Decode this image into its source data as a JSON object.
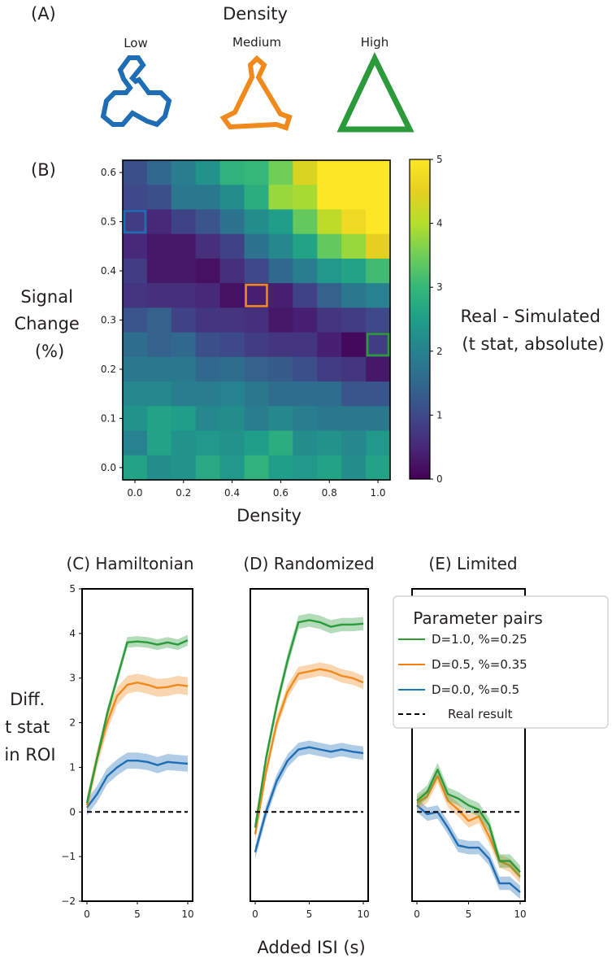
{
  "colors": {
    "blue": "#1f6eb5",
    "orange": "#f08a1c",
    "green": "#2b9a3a",
    "legend_blue": "#1f77b4",
    "legend_orange": "#ff7f0e",
    "legend_green": "#2ca02c"
  },
  "panel_a": {
    "label": "(A)",
    "title": "Density",
    "shapes": [
      {
        "label": "Low",
        "color": "#1f6eb5"
      },
      {
        "label": "Medium",
        "color": "#f08a1c"
      },
      {
        "label": "High",
        "color": "#2b9a3a"
      }
    ]
  },
  "panel_b": {
    "label": "(B)",
    "ylabel_lines": [
      "Signal",
      "Change",
      "(%)"
    ],
    "colorbar_label_lines": [
      "Real - Simulated",
      "(t stat, absolute)"
    ]
  },
  "panels_cde": {
    "titles": [
      "(C) Hamiltonian",
      "(D) Randomized",
      "(E) Limited"
    ],
    "ylabel_lines": [
      "Diff.",
      "t stat",
      "in ROI"
    ],
    "xlabel": "Added ISI (s)"
  },
  "legend": {
    "title": "Parameter pairs",
    "entries": [
      "D=1.0, %=0.25",
      "D=0.5, %=0.35",
      "D=0.0, %=0.5",
      "Real result"
    ]
  },
  "chart_data": [
    {
      "type": "heatmap",
      "title": "",
      "xlabel": "Density",
      "ylabel": "Signal Change (%)",
      "x_tick_labels": [
        "0.0",
        "0.2",
        "0.4",
        "0.6",
        "0.8",
        "1.0"
      ],
      "y_tick_labels": [
        "0.0",
        "0.1",
        "0.2",
        "0.3",
        "0.4",
        "0.5",
        "0.6"
      ],
      "x_values": [
        0.0,
        0.1,
        0.2,
        0.3,
        0.4,
        0.5,
        0.6,
        0.7,
        0.8,
        0.9,
        1.0
      ],
      "y_values": [
        0.6,
        0.55,
        0.5,
        0.45,
        0.4,
        0.35,
        0.3,
        0.25,
        0.2,
        0.15,
        0.1,
        0.05,
        0.0
      ],
      "values": [
        [
          1.1,
          1.5,
          1.9,
          2.3,
          2.9,
          3.0,
          3.5,
          4.4,
          5.0,
          5.0,
          5.0
        ],
        [
          1.0,
          1.1,
          1.8,
          1.8,
          2.2,
          2.8,
          3.8,
          3.9,
          5.0,
          5.0,
          5.0
        ],
        [
          0.8,
          0.5,
          0.9,
          1.2,
          1.7,
          2.2,
          2.5,
          3.4,
          4.1,
          4.7,
          5.0
        ],
        [
          0.5,
          0.3,
          0.3,
          0.6,
          0.9,
          1.7,
          2.1,
          2.6,
          3.4,
          3.8,
          4.5
        ],
        [
          0.8,
          0.3,
          0.3,
          0.2,
          0.6,
          1.0,
          1.5,
          1.9,
          2.4,
          2.6,
          3.1
        ],
        [
          0.7,
          0.6,
          0.6,
          0.5,
          0.2,
          0.4,
          0.4,
          0.9,
          1.4,
          1.8,
          2.0
        ],
        [
          1.2,
          1.4,
          0.9,
          0.7,
          0.7,
          0.6,
          0.3,
          0.4,
          0.7,
          0.8,
          1.0
        ],
        [
          1.6,
          1.4,
          1.5,
          1.1,
          1.0,
          0.8,
          0.7,
          0.7,
          0.4,
          0.1,
          0.8
        ],
        [
          1.8,
          1.8,
          1.8,
          1.5,
          1.6,
          1.4,
          1.3,
          1.1,
          0.8,
          0.7,
          0.3
        ],
        [
          2.1,
          2.1,
          1.9,
          1.9,
          2.0,
          1.8,
          1.6,
          1.6,
          1.6,
          1.2,
          1.2
        ],
        [
          2.3,
          2.6,
          2.5,
          2.1,
          2.2,
          1.9,
          2.1,
          1.9,
          1.8,
          1.8,
          1.8
        ],
        [
          2.0,
          2.6,
          2.3,
          2.4,
          2.3,
          2.5,
          2.8,
          2.2,
          2.3,
          2.1,
          2.4
        ],
        [
          2.6,
          2.2,
          2.3,
          2.7,
          2.4,
          2.9,
          2.5,
          2.4,
          2.6,
          2.2,
          2.6
        ]
      ],
      "colorbar": {
        "label": "Real - Simulated (t stat, absolute)",
        "range": [
          0,
          5
        ],
        "ticks": [
          "0",
          "1",
          "2",
          "3",
          "4",
          "5"
        ]
      },
      "highlighted_cells": [
        {
          "density": 0.0,
          "signal": 0.5,
          "color": "#1f6eb5"
        },
        {
          "density": 0.5,
          "signal": 0.35,
          "color": "#f08a1c"
        },
        {
          "density": 1.0,
          "signal": 0.25,
          "color": "#2b9a3a"
        }
      ]
    },
    {
      "type": "line",
      "title": "(C) Hamiltonian",
      "xlabel": "Added ISI (s)",
      "ylabel": "Diff. t stat in ROI",
      "x": [
        0,
        1,
        2,
        3,
        4,
        5,
        6,
        7,
        8,
        9,
        10
      ],
      "ylim": [
        -2,
        5
      ],
      "y_ticks": [
        "-2",
        "-1",
        "0",
        "1",
        "2",
        "3",
        "4",
        "5"
      ],
      "x_ticks": [
        "0",
        "5",
        "10"
      ],
      "series": [
        {
          "name": "D=1.0, %=0.25",
          "values": [
            0.2,
            1.2,
            2.2,
            3.0,
            3.8,
            3.82,
            3.8,
            3.75,
            3.8,
            3.75,
            3.85
          ],
          "band": 0.12
        },
        {
          "name": "D=0.5, %=0.35",
          "values": [
            0.15,
            1.2,
            2.0,
            2.6,
            2.85,
            2.9,
            2.85,
            2.78,
            2.8,
            2.85,
            2.82
          ],
          "band": 0.2
        },
        {
          "name": "D=0.0, %=0.5",
          "values": [
            0.1,
            0.4,
            0.8,
            1.0,
            1.15,
            1.15,
            1.12,
            1.05,
            1.12,
            1.1,
            1.08
          ],
          "band": 0.18
        }
      ],
      "reference_line": {
        "name": "Real result",
        "y": 0
      }
    },
    {
      "type": "line",
      "title": "(D) Randomized",
      "xlabel": "Added ISI (s)",
      "ylabel": "Diff. t stat in ROI",
      "x": [
        0,
        1,
        2,
        3,
        4,
        5,
        6,
        7,
        8,
        9,
        10
      ],
      "ylim": [
        -2,
        5
      ],
      "x_ticks": [
        "0",
        "5",
        "10"
      ],
      "series": [
        {
          "name": "D=1.0, %=0.25",
          "values": [
            -0.35,
            1.2,
            2.4,
            3.4,
            4.25,
            4.3,
            4.25,
            4.15,
            4.2,
            4.2,
            4.22
          ],
          "band": 0.15
        },
        {
          "name": "D=0.5, %=0.35",
          "values": [
            -0.5,
            0.9,
            2.0,
            2.7,
            3.1,
            3.15,
            3.2,
            3.15,
            3.05,
            3.0,
            2.9
          ],
          "band": 0.15
        },
        {
          "name": "D=0.0, %=0.5",
          "values": [
            -0.9,
            0.0,
            0.7,
            1.15,
            1.4,
            1.45,
            1.4,
            1.35,
            1.4,
            1.35,
            1.32
          ],
          "band": 0.15
        }
      ],
      "reference_line": {
        "name": "Real result",
        "y": 0
      }
    },
    {
      "type": "line",
      "title": "(E) Limited",
      "xlabel": "Added ISI (s)",
      "ylabel": "Diff. t stat in ROI",
      "x": [
        0,
        1,
        2,
        3,
        4,
        5,
        6,
        7,
        8,
        9,
        10
      ],
      "ylim": [
        -2,
        5
      ],
      "x_ticks": [
        "0",
        "5",
        "10"
      ],
      "series": [
        {
          "name": "D=1.0, %=0.25",
          "values": [
            0.25,
            0.45,
            0.95,
            0.4,
            0.3,
            0.15,
            0.05,
            -0.3,
            -1.1,
            -1.1,
            -1.35
          ],
          "band": 0.15
        },
        {
          "name": "D=0.5, %=0.35",
          "values": [
            0.2,
            0.35,
            0.8,
            0.25,
            0.05,
            -0.2,
            -0.1,
            -0.55,
            -1.1,
            -1.2,
            -1.45
          ],
          "band": 0.15
        },
        {
          "name": "D=0.0, %=0.5",
          "values": [
            0.15,
            -0.05,
            0.0,
            -0.35,
            -0.75,
            -0.8,
            -0.8,
            -1.05,
            -1.6,
            -1.6,
            -1.8
          ],
          "band": 0.15
        }
      ],
      "reference_line": {
        "name": "Real result",
        "y": 0
      }
    }
  ]
}
